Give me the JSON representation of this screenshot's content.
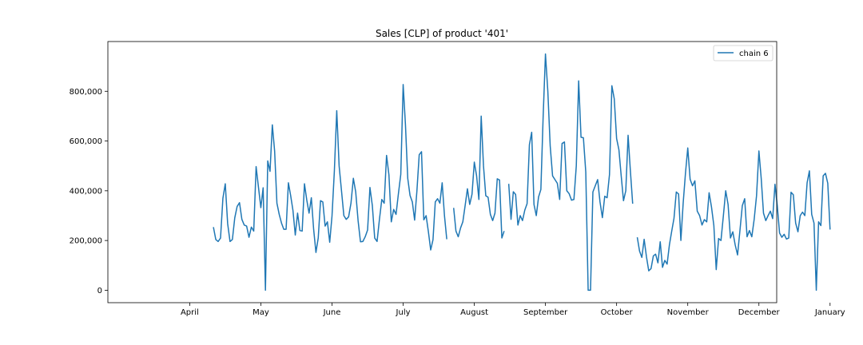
{
  "chart_data": {
    "type": "line",
    "title": "Sales [CLP] of product '401'",
    "xlabel": "",
    "ylabel": "",
    "x_ticks": [
      "April",
      "May",
      "June",
      "July",
      "August",
      "September",
      "October",
      "November",
      "December",
      "January"
    ],
    "y_ticks": [
      "0",
      "200,000",
      "400,000",
      "600,000",
      "800,000"
    ],
    "y_tick_values": [
      0,
      200000,
      400000,
      600000,
      800000
    ],
    "ylim": [
      -50000,
      1000000
    ],
    "x_range_months": [
      2.85,
      12.25
    ],
    "grid": false,
    "legend_position": "top-right",
    "series": [
      {
        "name": "chain 6",
        "color": "#1f77b4",
        "segments": [
          {
            "start": "2021-04-11",
            "values": [
              254000,
              204000,
              196000,
              210000,
              370000,
              428000,
              268000,
              196000,
              204000,
              291000,
              337000,
              352000,
              285000,
              262000,
              258000,
              213000,
              254000,
              238000,
              497000,
              414000,
              332000,
              412000,
              0,
              520000,
              478000,
              665000,
              560000,
              350000,
              305000,
              270000,
              245000,
              245000,
              432000,
              380000,
              320000,
              222000,
              310000,
              240000,
              238000,
              428000,
              363000,
              310000,
              372000,
              245000,
              152000,
              210000,
              360000,
              355000,
              258000,
              275000,
              193000,
              298000,
              480000,
              722000,
              500000,
              400000,
              300000,
              285000,
              295000,
              350000,
              450000,
              395000,
              280000,
              195000,
              196000,
              215000,
              242000,
              413000,
              341000,
              210000,
              196000,
              285000,
              365000,
              350000,
              542000,
              464000,
              275000,
              325000,
              305000,
              388000,
              466000,
              827000,
              666000,
              450000,
              381000,
              355000,
              282000,
              400000,
              545000,
              557000,
              283000,
              300000,
              235000,
              162000,
              203000,
              355000,
              368000,
              350000,
              432000,
              300000,
              205000
            ]
          },
          {
            "start": "2021-07-23",
            "values": [
              331000,
              238000,
              215000,
              250000,
              275000,
              340000,
              408000,
              345000,
              386000,
              515000,
              460000,
              365000,
              700000,
              500000,
              380000,
              374000,
              305000,
              280000,
              310000,
              448000,
              443000,
              210000,
              238000
            ]
          },
          {
            "start": "2021-08-16",
            "values": [
              428000,
              285000,
              396000,
              385000,
              262000,
              300000,
              280000,
              322000,
              348000,
              585000,
              635000,
              345000,
              300000,
              375000,
              405000,
              700000,
              950000,
              800000,
              580000,
              460000,
              445000,
              430000,
              365000,
              590000,
              596000,
              400000,
              388000,
              362000,
              365000,
              500000,
              842000,
              615000,
              613000,
              475000,
              0,
              0,
              395000,
              420000,
              445000,
              355000,
              292000,
              378000,
              372000,
              465000,
              822000,
              770000,
              610000,
              565000,
              460000,
              360000,
              400000,
              623000,
              480000,
              348000
            ]
          },
          {
            "start": "2021-10-10",
            "values": [
              213000,
              157000,
              132000,
              205000,
              135000,
              78000,
              87000,
              138000,
              145000,
              110000,
              195000,
              92000,
              120000,
              105000,
              182000,
              237000,
              289000,
              395000,
              387000,
              200000,
              350000,
              470000,
              572000,
              446000,
              420000,
              440000,
              318000,
              300000,
              262000,
              284000,
              275000,
              392000,
              335000,
              260000,
              83000,
              208000,
              200000,
              298000,
              400000,
              345000,
              210000,
              235000,
              182000,
              142000,
              240000,
              340000,
              368000,
              215000,
              240000,
              215000,
              285000,
              380000,
              560000,
              450000,
              310000,
              280000,
              300000,
              318000,
              288000,
              426000,
              340000,
              230000,
              213000,
              225000,
              206000,
              210000,
              394000,
              384000,
              270000,
              235000,
              300000,
              314000,
              300000,
              432000,
              480000,
              305000,
              270000,
              0,
              275000,
              260000,
              460000,
              470000,
              430000,
              244000
            ]
          }
        ]
      }
    ]
  }
}
